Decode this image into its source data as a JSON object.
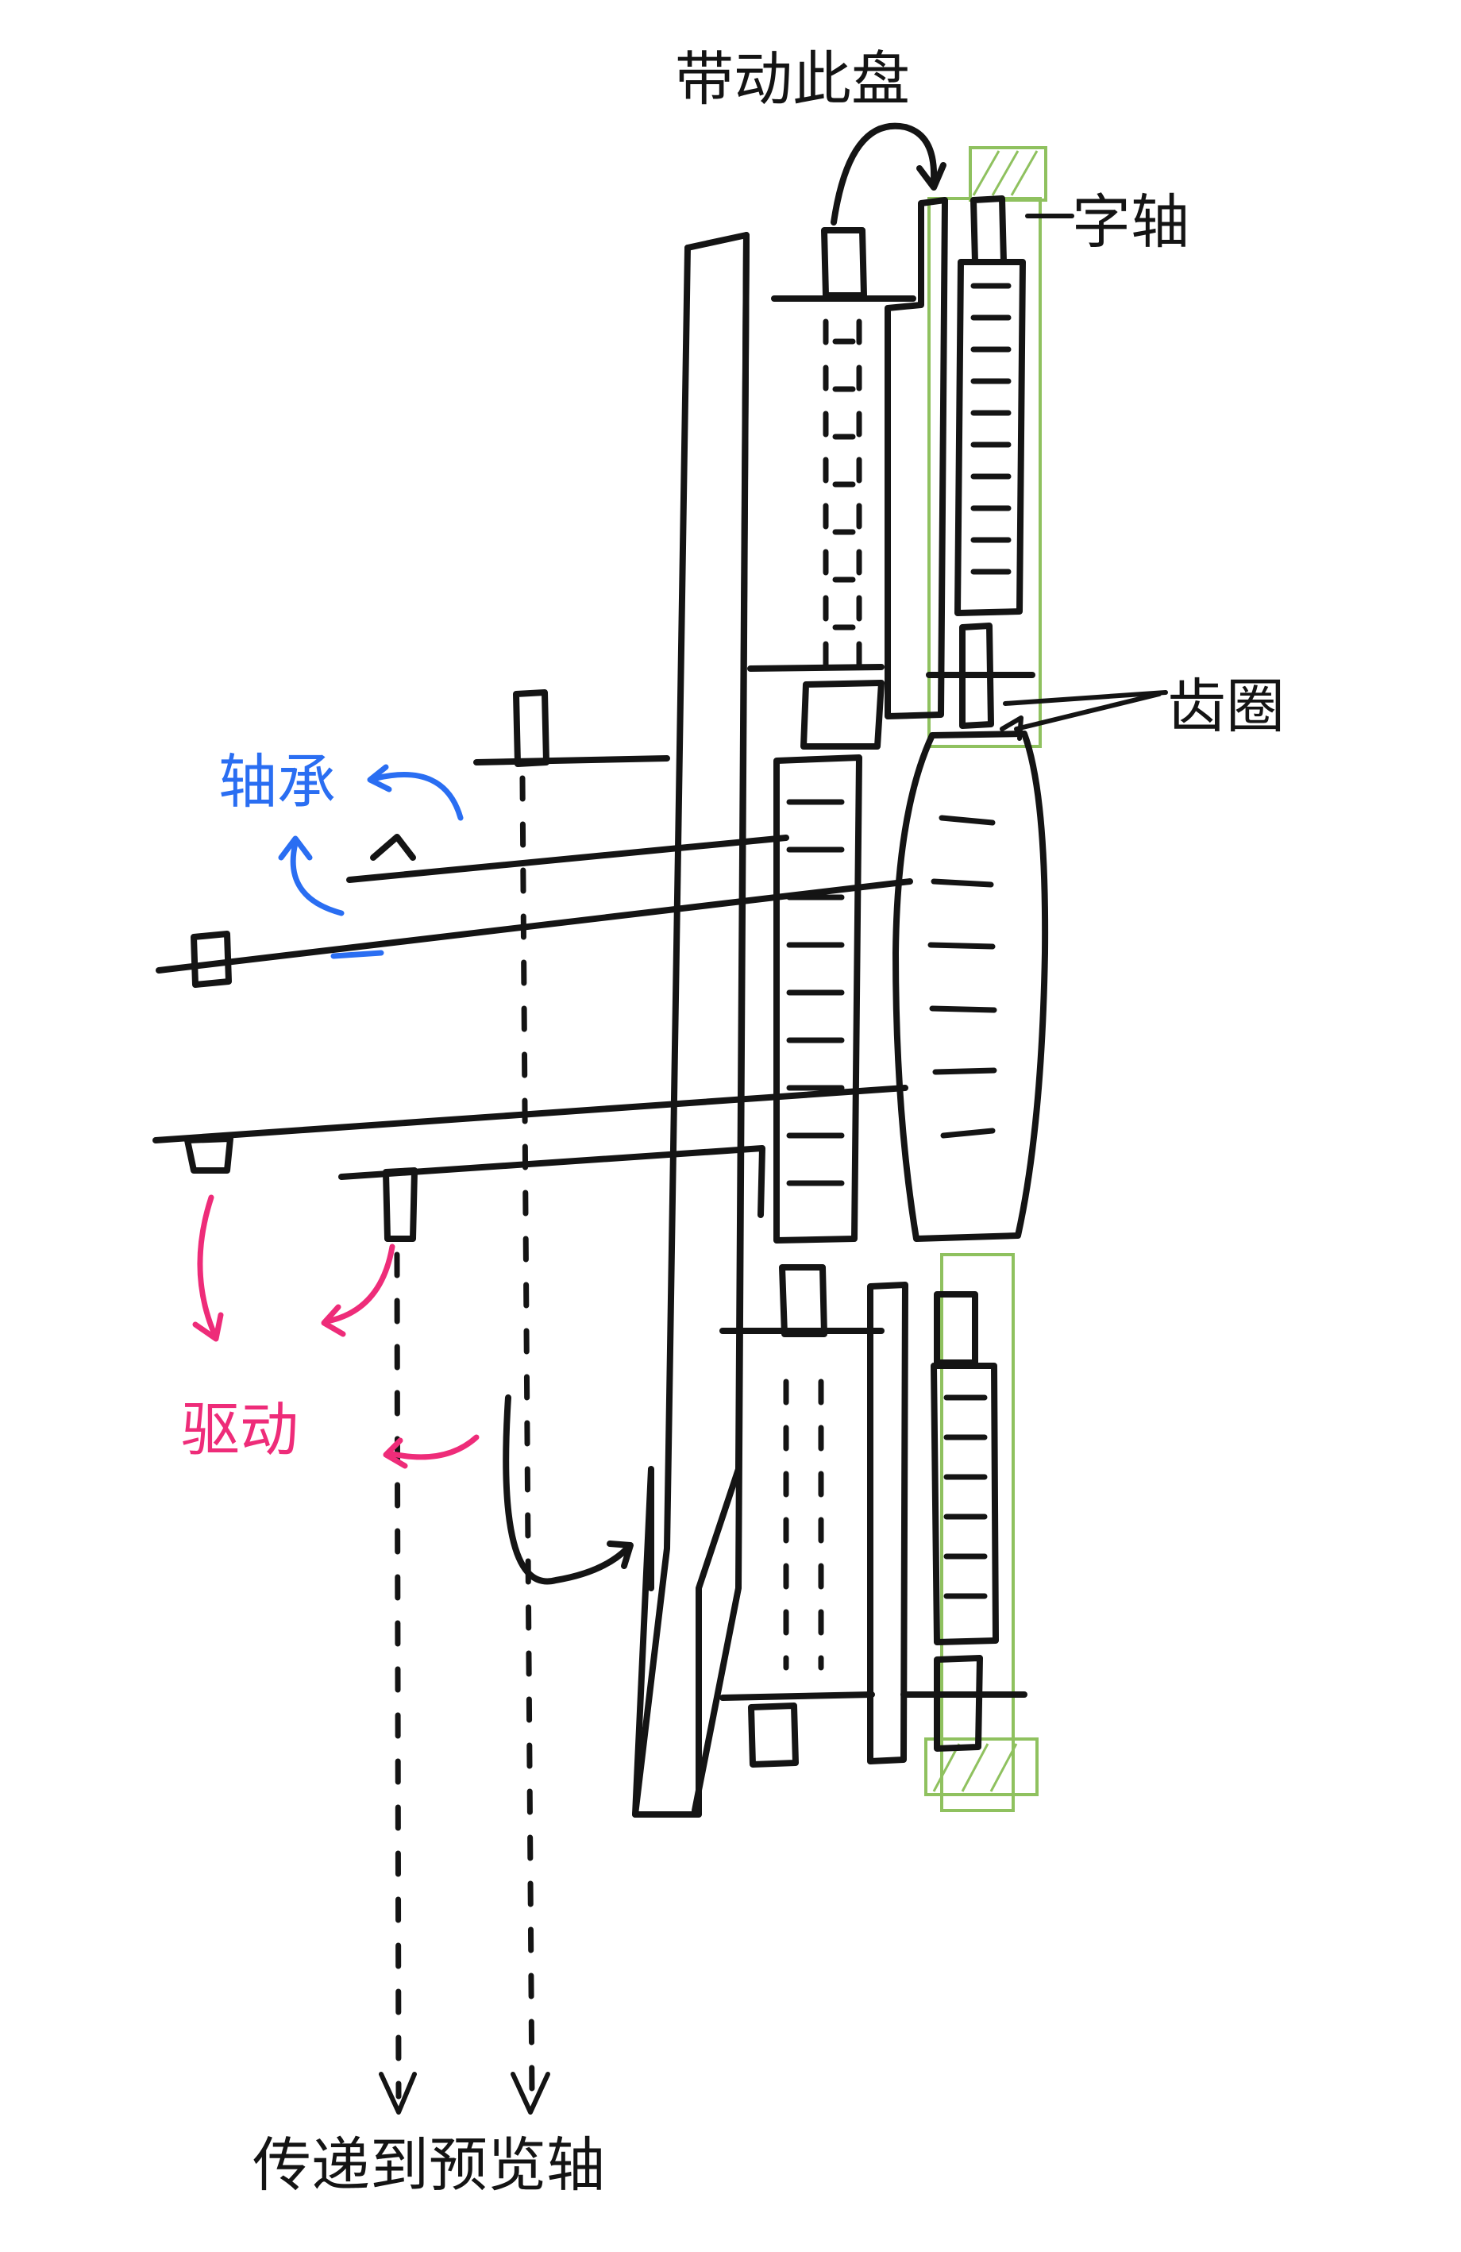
{
  "labels": {
    "top": "带动此盘",
    "character_shaft": "字轴",
    "gear_ring": "齿圈",
    "bearing": "轴承",
    "drive": "驱动",
    "bottom": "传递到预览轴"
  },
  "colors": {
    "ink": "#141414",
    "bearing_blue": "#2a6ef2",
    "drive_pink": "#ee2c79",
    "highlight_green": "#8fc15f"
  }
}
